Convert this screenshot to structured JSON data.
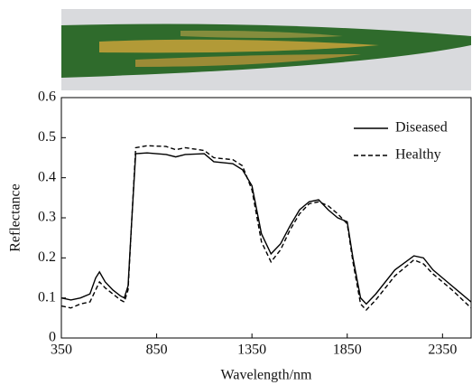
{
  "chart_data": {
    "type": "line",
    "x_label": "Wavelength/nm",
    "y_label": "Reflectance",
    "x": [
      350,
      400,
      450,
      500,
      530,
      550,
      580,
      620,
      660,
      680,
      700,
      720,
      740,
      800,
      900,
      950,
      1000,
      1100,
      1150,
      1250,
      1300,
      1350,
      1400,
      1450,
      1500,
      1550,
      1600,
      1650,
      1700,
      1750,
      1800,
      1850,
      1880,
      1920,
      1950,
      2000,
      2100,
      2200,
      2250,
      2300,
      2400,
      2500
    ],
    "series": [
      {
        "name": "Diseased",
        "color": "#000000",
        "dash": "solid",
        "values": [
          0.1,
          0.095,
          0.1,
          0.11,
          0.15,
          0.165,
          0.14,
          0.12,
          0.105,
          0.1,
          0.13,
          0.3,
          0.46,
          0.462,
          0.458,
          0.452,
          0.458,
          0.46,
          0.44,
          0.435,
          0.42,
          0.38,
          0.26,
          0.21,
          0.235,
          0.28,
          0.32,
          0.34,
          0.345,
          0.32,
          0.3,
          0.29,
          0.2,
          0.1,
          0.085,
          0.11,
          0.17,
          0.205,
          0.2,
          0.17,
          0.13,
          0.09
        ]
      },
      {
        "name": "Healthy",
        "color": "#000000",
        "dash": "dashed",
        "values": [
          0.08,
          0.075,
          0.085,
          0.09,
          0.12,
          0.14,
          0.125,
          0.11,
          0.095,
          0.09,
          0.12,
          0.3,
          0.475,
          0.48,
          0.478,
          0.47,
          0.475,
          0.468,
          0.45,
          0.445,
          0.43,
          0.37,
          0.24,
          0.19,
          0.22,
          0.27,
          0.31,
          0.335,
          0.34,
          0.33,
          0.31,
          0.285,
          0.19,
          0.085,
          0.07,
          0.095,
          0.155,
          0.195,
          0.185,
          0.16,
          0.12,
          0.075
        ]
      }
    ],
    "xlim": [
      350,
      2500
    ],
    "xticks": [
      350,
      850,
      1350,
      1850,
      2350
    ],
    "ylim": [
      0,
      0.6
    ],
    "yticks": [
      0,
      0.1,
      0.2,
      0.3,
      0.4,
      0.5,
      0.6
    ],
    "legend": "upper right",
    "grid": false
  }
}
